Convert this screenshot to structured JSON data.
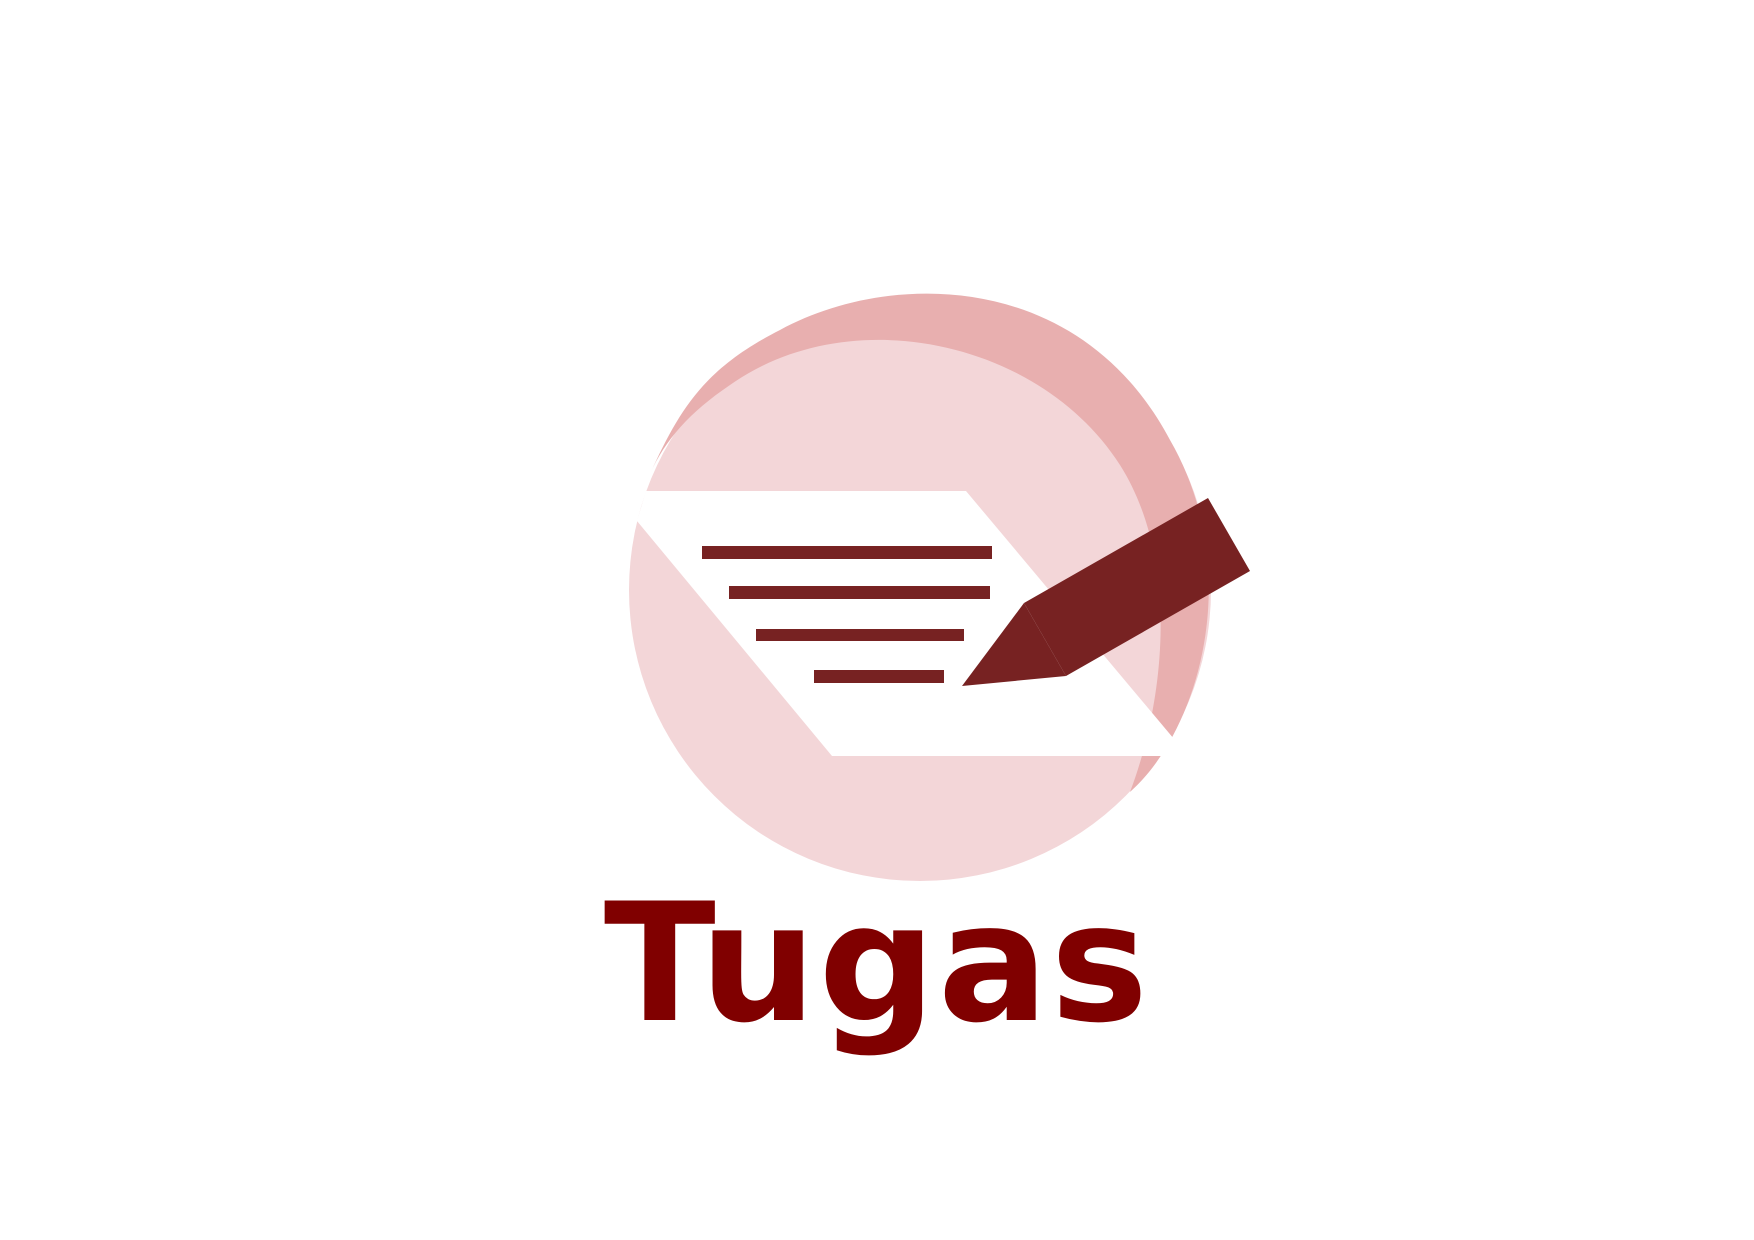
{
  "logo": {
    "title": "Tugas",
    "icon": "document-with-pencil-icon"
  },
  "colors": {
    "background": "#ffffff",
    "title_text": "#800000",
    "circle_light": "#f3d6d8",
    "circle_shadow": "#e8afaf",
    "paper": "#ffffff",
    "text_lines": "#772222",
    "pencil": "#772222"
  }
}
